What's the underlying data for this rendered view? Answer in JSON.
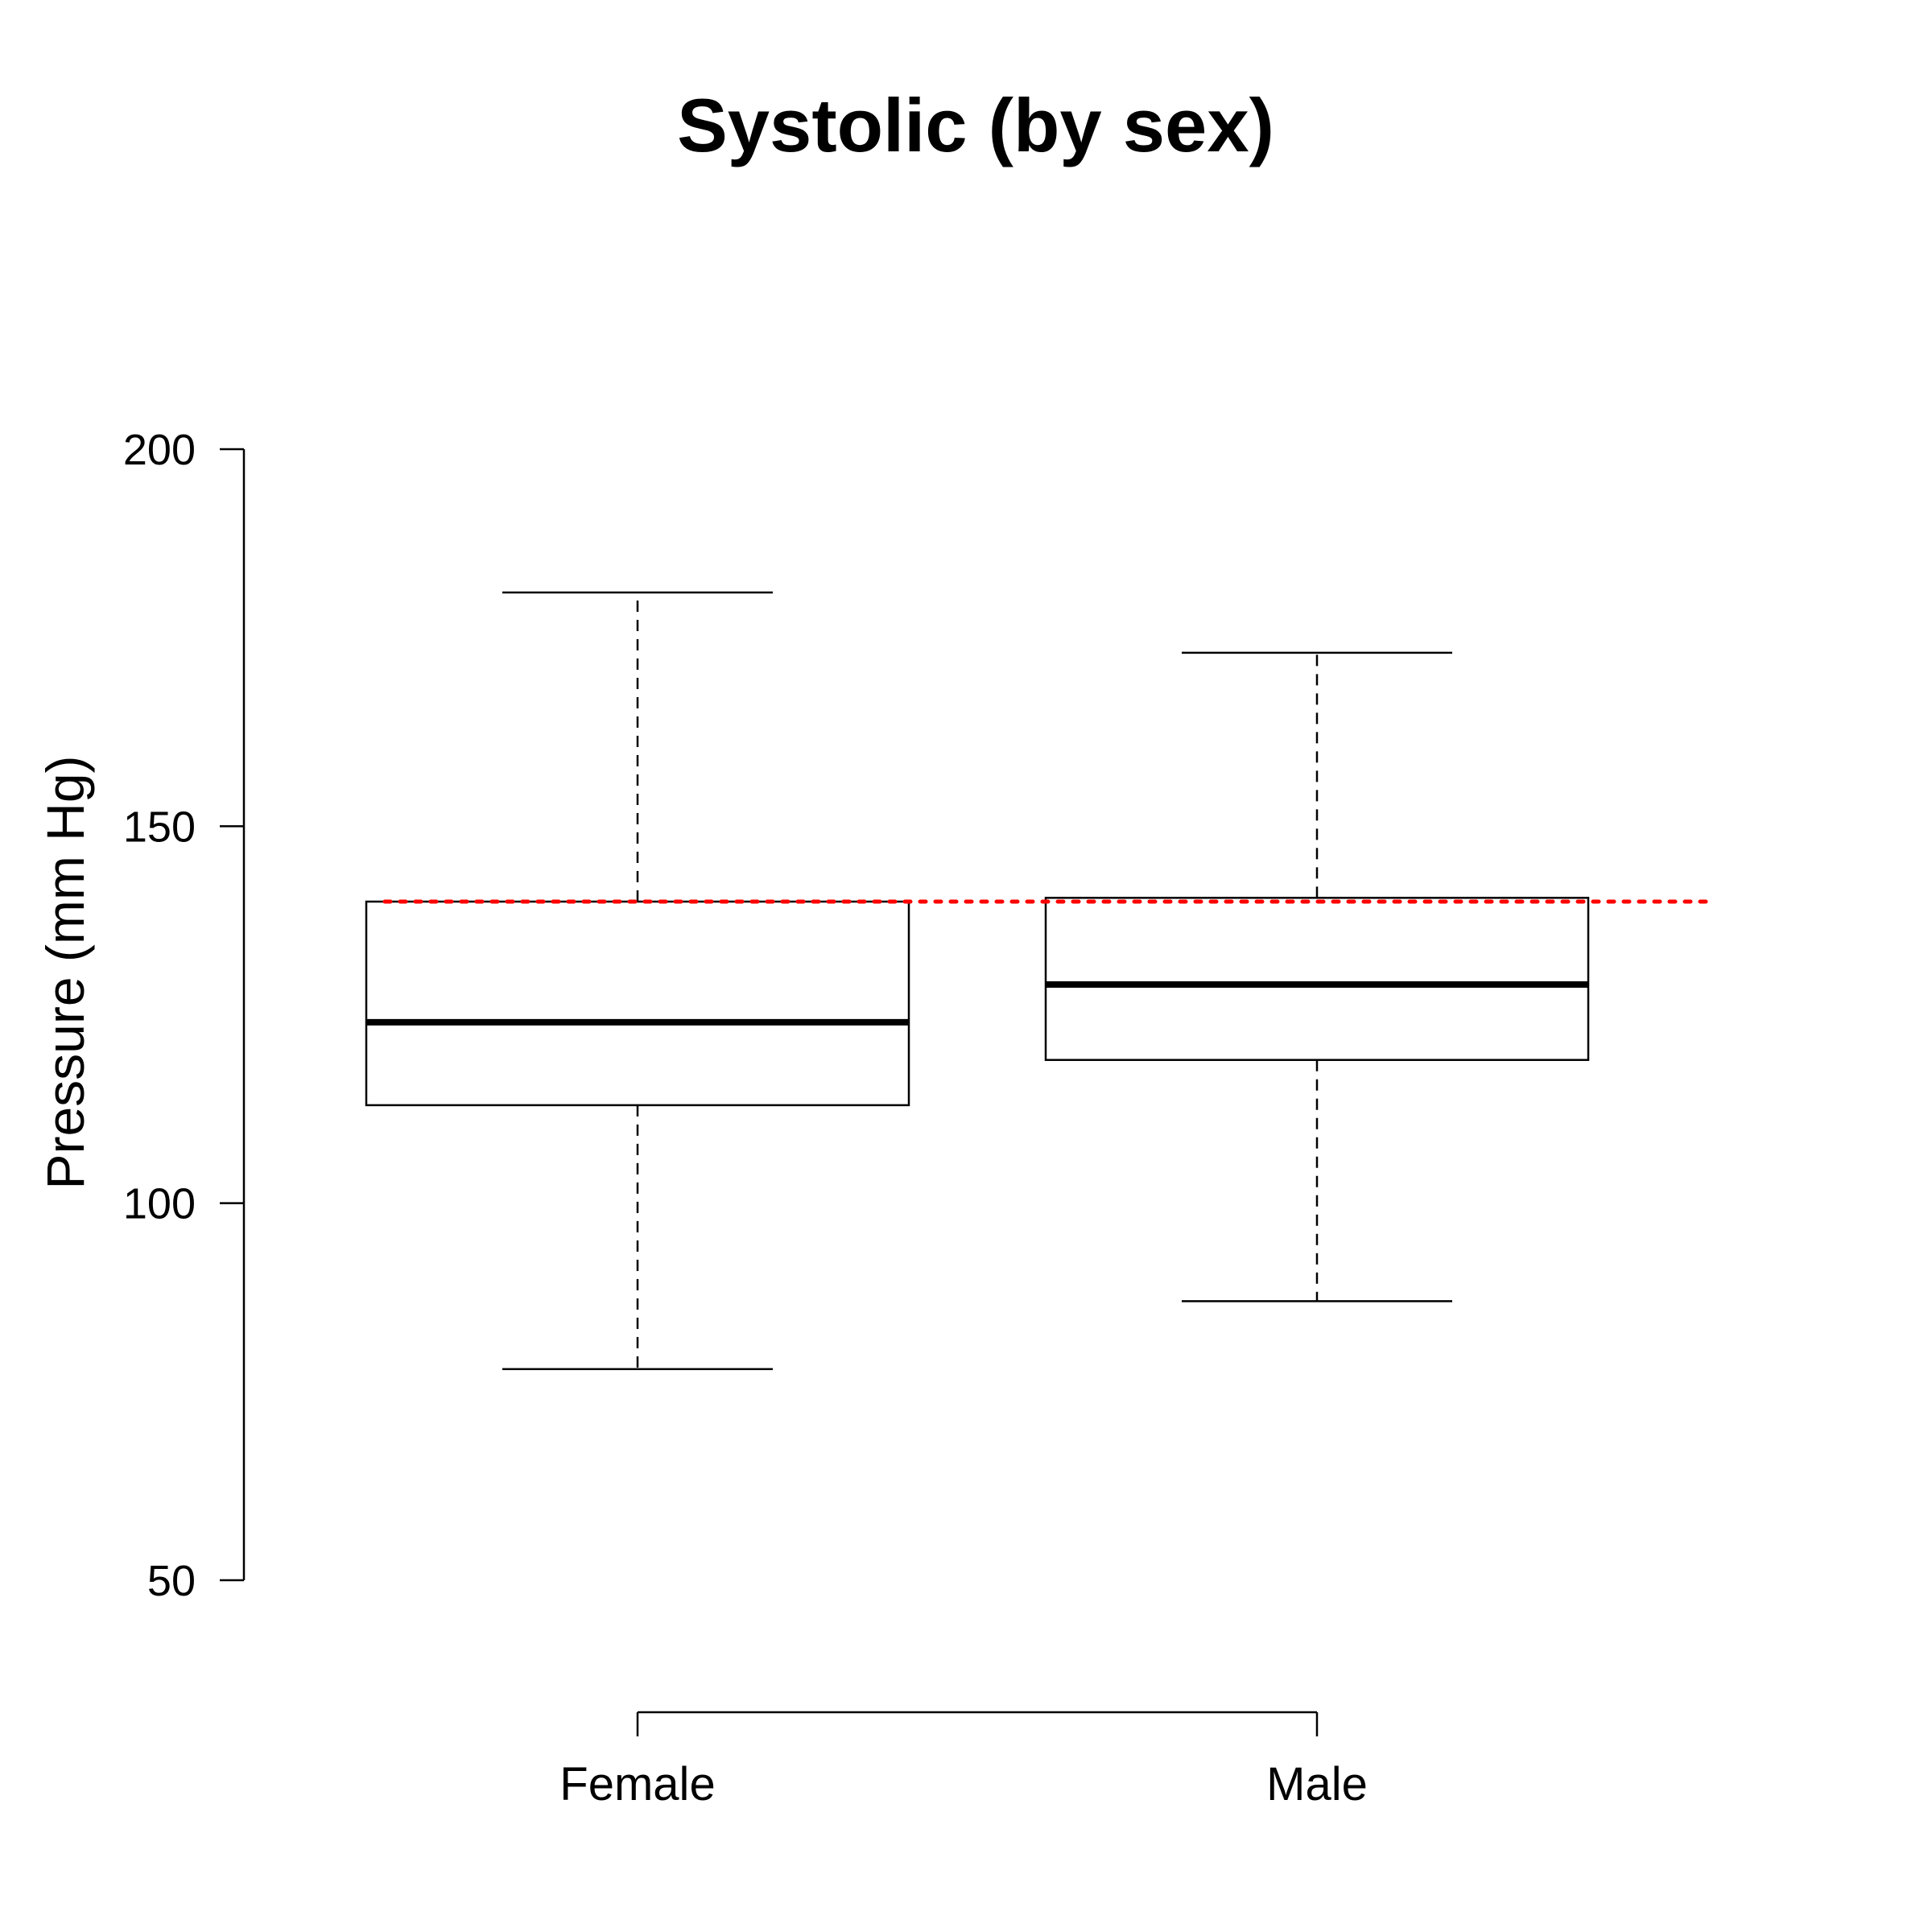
{
  "chart_data": {
    "type": "box",
    "title": "Systolic (by sex)",
    "ylabel": "Pressure (mm Hg)",
    "xlabel": "",
    "ylim": [
      50,
      200
    ],
    "yticks": [
      50,
      100,
      150,
      200
    ],
    "categories": [
      "Female",
      "Male"
    ],
    "boxes": [
      {
        "category": "Female",
        "whisker_low": 78,
        "q1": 113,
        "median": 124,
        "q3": 140,
        "whisker_high": 181
      },
      {
        "category": "Male",
        "whisker_low": 87,
        "q1": 119,
        "median": 129,
        "q3": 140.5,
        "whisker_high": 173
      }
    ],
    "reference_line": {
      "value": 140,
      "color": "#ff0000",
      "style": "dotted"
    },
    "grid": false,
    "box_color": "#000000"
  }
}
